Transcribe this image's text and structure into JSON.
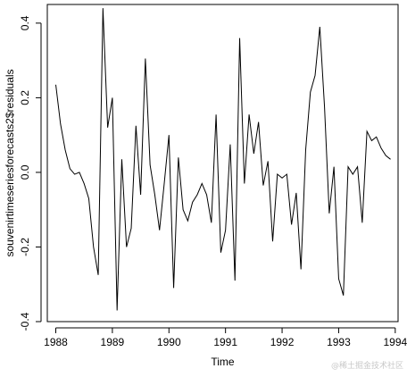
{
  "chart_data": {
    "type": "line",
    "xlabel": "Time",
    "ylabel": "souvenirtimeseriesforecasts2$residuals",
    "xlim": [
      1987.85,
      1994.05
    ],
    "ylim": [
      -0.4,
      0.45
    ],
    "x_ticks": [
      1988,
      1989,
      1990,
      1991,
      1992,
      1993,
      1994
    ],
    "x_tick_labels": [
      "1988",
      "1989",
      "1990",
      "1991",
      "1992",
      "1993",
      "1994"
    ],
    "y_ticks": [
      -0.4,
      -0.2,
      0.0,
      0.2,
      0.4
    ],
    "y_tick_labels": [
      "-0.4",
      "-0.2",
      "0.0",
      "0.2",
      "0.4"
    ],
    "grid": false,
    "line_color": "#000000",
    "series": [
      {
        "x_start": 1988.0,
        "x_step": 0.0833333,
        "values": [
          0.235,
          0.13,
          0.06,
          0.01,
          -0.005,
          0.0,
          -0.03,
          -0.07,
          -0.2,
          -0.275,
          0.44,
          0.12,
          0.2,
          -0.37,
          0.035,
          -0.2,
          -0.15,
          0.125,
          -0.06,
          0.305,
          0.02,
          -0.06,
          -0.155,
          -0.03,
          0.1,
          -0.31,
          0.04,
          -0.1,
          -0.13,
          -0.08,
          -0.06,
          -0.03,
          -0.06,
          -0.135,
          0.155,
          -0.215,
          -0.155,
          0.075,
          -0.29,
          0.36,
          -0.03,
          0.155,
          0.05,
          0.135,
          -0.035,
          0.03,
          -0.185,
          -0.005,
          -0.015,
          -0.005,
          -0.14,
          -0.055,
          -0.26,
          0.06,
          0.215,
          0.26,
          0.39,
          0.175,
          -0.11,
          0.015,
          -0.285,
          -0.33,
          0.015,
          -0.005,
          0.015,
          -0.135,
          0.11,
          0.085,
          0.095,
          0.065,
          0.045,
          0.035
        ]
      }
    ]
  },
  "watermark": "@稀土掘金技术社区"
}
